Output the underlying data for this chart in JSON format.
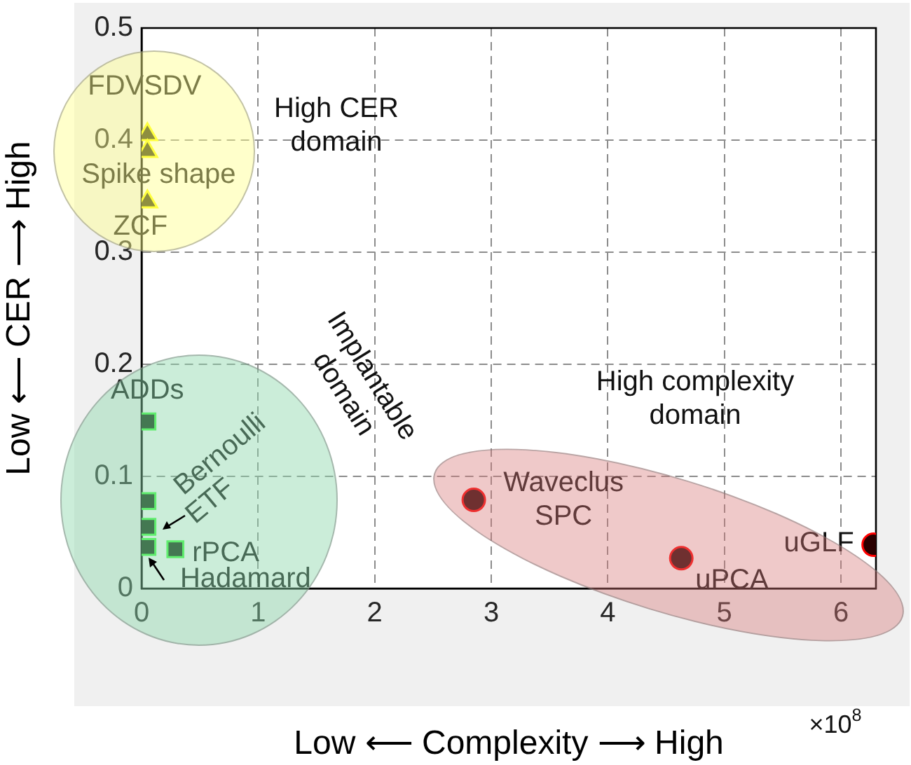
{
  "chart_data": {
    "type": "scatter",
    "xlabel": "Low ⟵ Complexity ⟶ High",
    "ylabel": "Low ⟵ CER ⟶ High",
    "xlim": [
      0,
      6.3
    ],
    "xticks": [
      0,
      1,
      2,
      3,
      4,
      5,
      6
    ],
    "ylim": [
      0,
      0.5
    ],
    "yticks": [
      0,
      0.1,
      0.2,
      0.3,
      0.4,
      0.5
    ],
    "grid": true,
    "series": [
      {
        "color": "#333300",
        "marker": "triangle",
        "x": [
          0.05,
          0.05,
          0.05
        ],
        "values": [
          0.405,
          0.39,
          0.345
        ]
      },
      {
        "color": "#0a2a0a",
        "marker": "square",
        "x": [
          0.05,
          0.05,
          0.05,
          0.05,
          0.29
        ],
        "values": [
          0.149,
          0.078,
          0.055,
          0.037,
          0.035
        ]
      },
      {
        "color": "#2a0000",
        "marker": "circle",
        "x": [
          2.85,
          4.63,
          6.28
        ],
        "values": [
          0.079,
          0.027,
          0.039
        ]
      }
    ],
    "annotations": [
      {
        "text": "FDVSDV",
        "x": 0.05,
        "y": 0.405
      },
      {
        "text": "Spike shape",
        "x": 0.05,
        "y": 0.39
      },
      {
        "text": "ZCF",
        "x": 0.05,
        "y": 0.345
      },
      {
        "text": "ADDs",
        "x": 0.05,
        "y": 0.149
      },
      {
        "text": "Bernoulli",
        "x": 0.05,
        "y": 0.078
      },
      {
        "text": "ETF",
        "x": 0.05,
        "y": 0.055
      },
      {
        "text": "rPCA",
        "x": 0.29,
        "y": 0.035
      },
      {
        "text": "Hadamard",
        "x": 0.05,
        "y": 0.037
      },
      {
        "text": "Waveclus\nSPC",
        "x": 2.85,
        "y": 0.079
      },
      {
        "text": "uPCA",
        "x": 4.63,
        "y": 0.027
      },
      {
        "text": "uGLF",
        "x": 6.28,
        "y": 0.039
      },
      "High CER\ndomain",
      "Implantable\ndomain",
      "High complexity\ndomain",
      "×10$^{8}$"
    ]
  }
}
